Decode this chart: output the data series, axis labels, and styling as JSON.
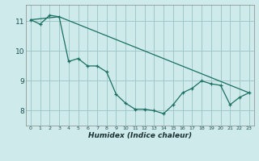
{
  "title": "",
  "xlabel": "Humidex (Indice chaleur)",
  "ylabel": "",
  "background_color": "#ceeaea",
  "line_color": "#1a7060",
  "grid_color": "#a0c8c8",
  "series1_x": [
    0,
    1,
    2,
    3,
    4,
    5,
    6,
    7,
    8,
    9,
    10,
    11,
    12,
    13,
    14,
    15,
    16,
    17,
    18,
    19,
    20,
    21,
    22,
    23
  ],
  "series1_y": [
    11.05,
    10.9,
    11.2,
    11.15,
    9.65,
    9.75,
    9.5,
    9.5,
    9.3,
    8.55,
    8.25,
    8.05,
    8.05,
    8.0,
    7.9,
    8.2,
    8.6,
    8.75,
    9.0,
    8.9,
    8.85,
    8.2,
    8.45,
    8.6
  ],
  "series2_x": [
    0,
    3,
    23
  ],
  "series2_y": [
    11.05,
    11.15,
    8.6
  ],
  "xlim": [
    -0.5,
    23.5
  ],
  "ylim": [
    7.5,
    11.55
  ],
  "xticks": [
    0,
    1,
    2,
    3,
    4,
    5,
    6,
    7,
    8,
    9,
    10,
    11,
    12,
    13,
    14,
    15,
    16,
    17,
    18,
    19,
    20,
    21,
    22,
    23
  ],
  "yticks": [
    8,
    9,
    10,
    11
  ],
  "xticklabels": [
    "0",
    "1",
    "2",
    "3",
    "4",
    "5",
    "6",
    "7",
    "8",
    "9",
    "10",
    "11",
    "12",
    "13",
    "14",
    "15",
    "16",
    "17",
    "18",
    "19",
    "20",
    "21",
    "22",
    "23"
  ]
}
